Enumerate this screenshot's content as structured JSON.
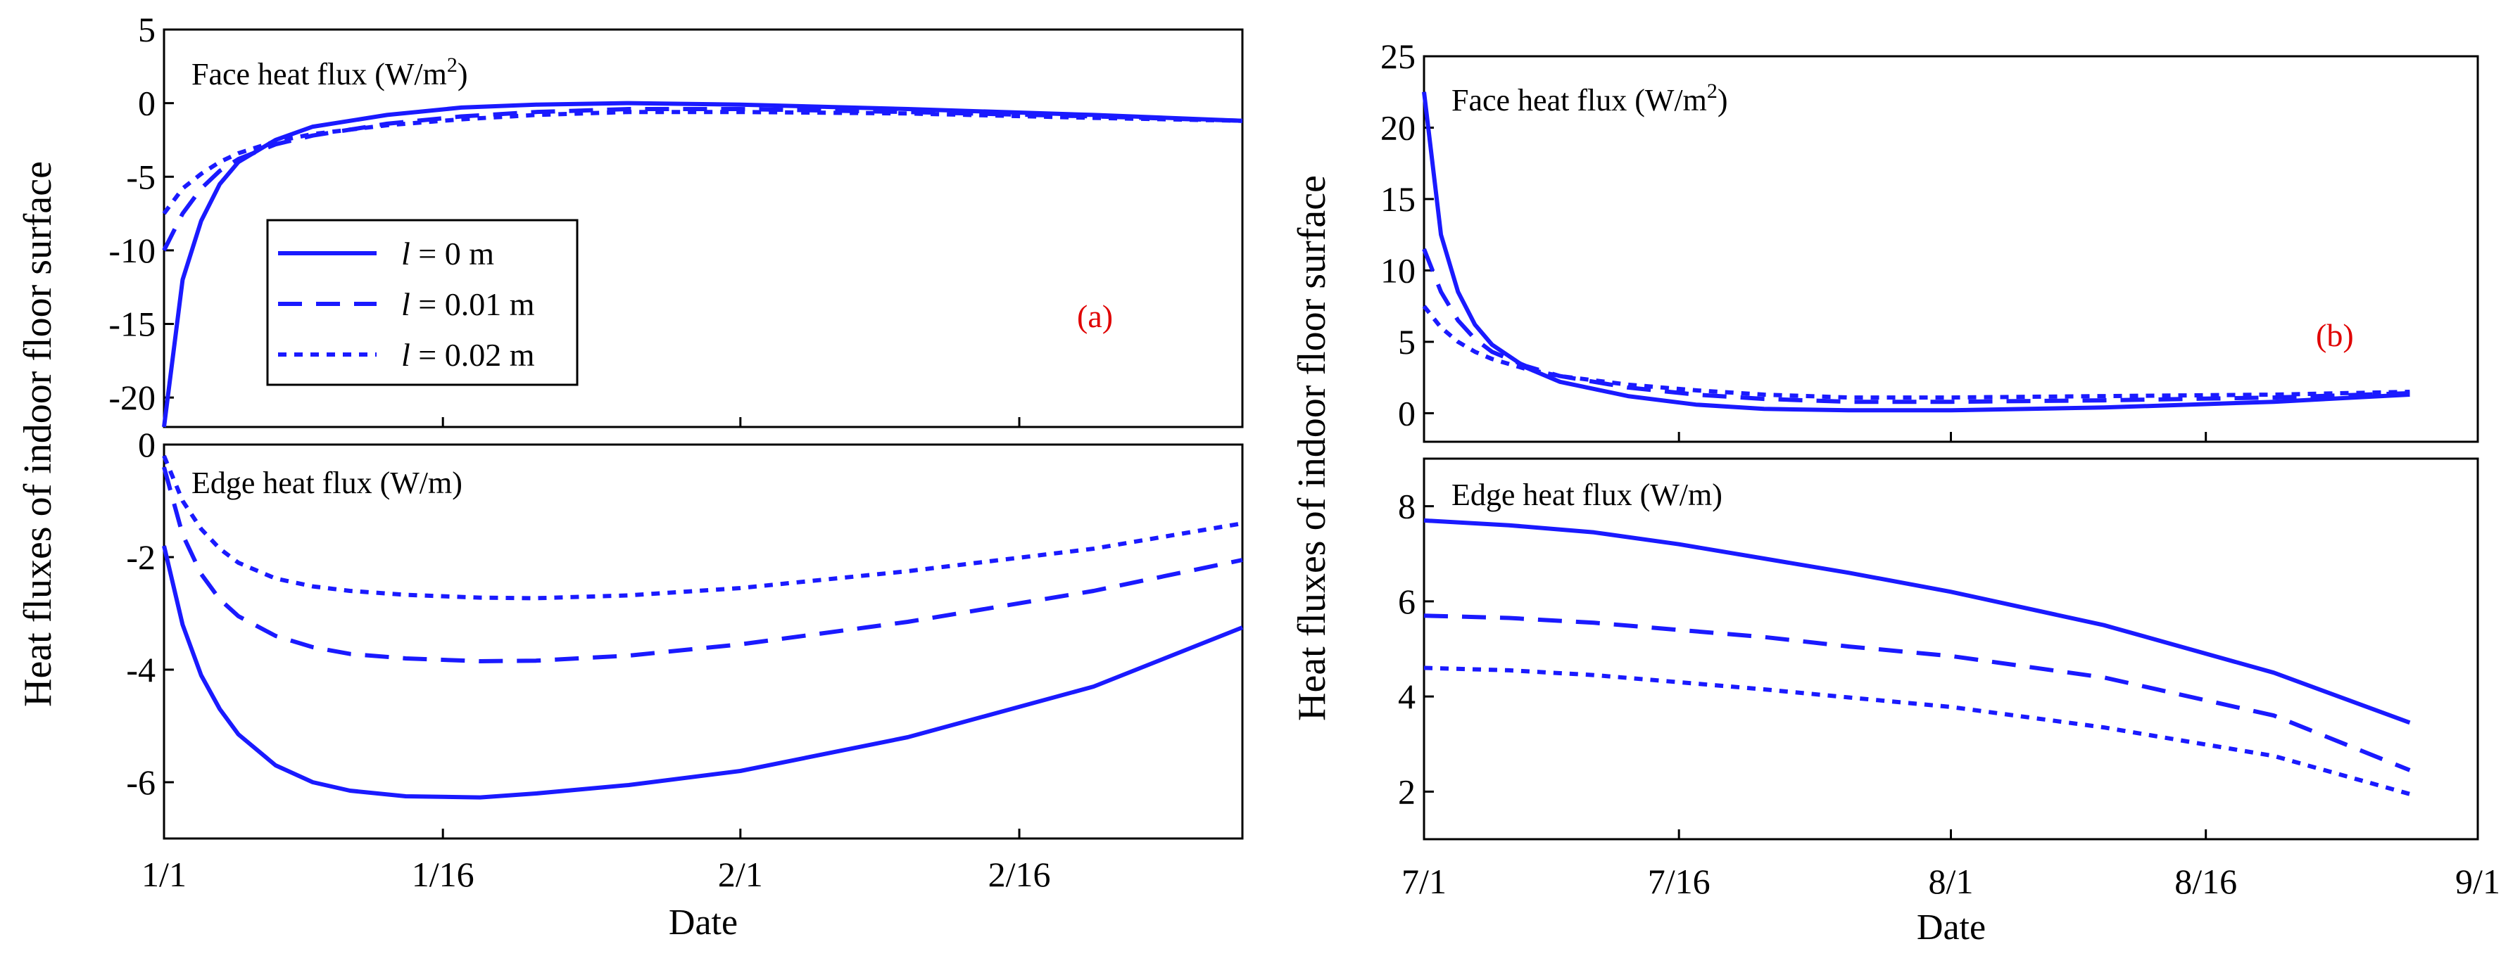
{
  "chart_data": [
    {
      "id": "a",
      "type": "line",
      "tag": "(a)",
      "ylabel": "Heat fluxes of indoor floor surface",
      "xlabel": "Date",
      "x_ticks": [
        "1/1",
        "1/16",
        "2/1",
        "2/16"
      ],
      "x_tick_days": [
        0,
        15,
        31,
        46
      ],
      "x_range": [
        0,
        58
      ],
      "legend": [
        {
          "var": "l",
          "text": " = 0 m",
          "dash": "solid"
        },
        {
          "var": "l",
          "text": " = 0.01 m",
          "dash": "dashed"
        },
        {
          "var": "l",
          "text": " = 0.02 m",
          "dash": "dotted"
        }
      ],
      "panels": [
        {
          "title": "Face heat flux (W/m",
          "title_sup": "2",
          "title_end": ")",
          "ylim": [
            -22,
            5
          ],
          "yticks": [
            5,
            0,
            -5,
            -10,
            -15,
            -20
          ],
          "ytick_labels": [
            "5",
            "0",
            "-5",
            "-10",
            "-15",
            "-20"
          ],
          "series": [
            {
              "name": "l = 0 m",
              "dash": "solid",
              "x": [
                0,
                1,
                2,
                3,
                4,
                6,
                8,
                12,
                16,
                20,
                25,
                31,
                40,
                50,
                58
              ],
              "y": [
                -22,
                -12,
                -8,
                -5.5,
                -4,
                -2.5,
                -1.6,
                -0.8,
                -0.3,
                -0.1,
                0,
                -0.1,
                -0.4,
                -0.8,
                -1.2
              ]
            },
            {
              "name": "l = 0.01 m",
              "dash": "dashed",
              "x": [
                0,
                1,
                2,
                3,
                4,
                6,
                8,
                12,
                16,
                20,
                25,
                31,
                40,
                50,
                58
              ],
              "y": [
                -10,
                -7.5,
                -5.8,
                -4.6,
                -3.8,
                -2.8,
                -2.2,
                -1.4,
                -0.9,
                -0.6,
                -0.4,
                -0.4,
                -0.6,
                -0.9,
                -1.2
              ]
            },
            {
              "name": "l = 0.02 m",
              "dash": "dotted",
              "x": [
                0,
                1,
                2,
                3,
                4,
                6,
                8,
                12,
                16,
                20,
                25,
                31,
                40,
                50,
                58
              ],
              "y": [
                -7.5,
                -5.8,
                -4.8,
                -4,
                -3.4,
                -2.6,
                -2.1,
                -1.5,
                -1.1,
                -0.8,
                -0.6,
                -0.6,
                -0.7,
                -1,
                -1.2
              ]
            }
          ]
        },
        {
          "title": "Edge heat flux (W/m)",
          "title_sup": "",
          "title_end": "",
          "ylim": [
            -7,
            0
          ],
          "yticks": [
            0,
            -2,
            -4,
            -6
          ],
          "ytick_labels": [
            "0",
            "-2",
            "-4",
            "-6"
          ],
          "series": [
            {
              "name": "l = 0 m",
              "dash": "solid",
              "x": [
                0,
                1,
                2,
                3,
                4,
                6,
                8,
                10,
                13,
                17,
                20,
                25,
                31,
                40,
                50,
                58
              ],
              "y": [
                -1.8,
                -3.2,
                -4.1,
                -4.7,
                -5.15,
                -5.7,
                -6,
                -6.15,
                -6.25,
                -6.27,
                -6.2,
                -6.05,
                -5.8,
                -5.2,
                -4.3,
                -3.25
              ]
            },
            {
              "name": "l = 0.01 m",
              "dash": "dashed",
              "x": [
                0,
                1,
                2,
                3,
                4,
                6,
                8,
                10,
                13,
                17,
                20,
                25,
                31,
                40,
                50,
                58
              ],
              "y": [
                -0.4,
                -1.6,
                -2.3,
                -2.75,
                -3.05,
                -3.4,
                -3.6,
                -3.72,
                -3.8,
                -3.85,
                -3.84,
                -3.75,
                -3.55,
                -3.15,
                -2.6,
                -2.05
              ]
            },
            {
              "name": "l = 0.02 m",
              "dash": "dotted",
              "x": [
                0,
                1,
                2,
                3,
                4,
                6,
                8,
                10,
                13,
                17,
                20,
                25,
                31,
                40,
                50,
                58
              ],
              "y": [
                -0.2,
                -1,
                -1.5,
                -1.85,
                -2.1,
                -2.38,
                -2.52,
                -2.6,
                -2.67,
                -2.72,
                -2.73,
                -2.68,
                -2.55,
                -2.25,
                -1.85,
                -1.4
              ]
            }
          ]
        }
      ]
    },
    {
      "id": "b",
      "type": "line",
      "tag": "(b)",
      "ylabel": "Heat fluxes of indoor floor surface",
      "xlabel": "Date",
      "x_ticks": [
        "7/1",
        "7/16",
        "8/1",
        "8/16",
        "9/1"
      ],
      "x_tick_days": [
        0,
        15,
        31,
        46,
        62
      ],
      "x_range": [
        0,
        62
      ],
      "panels": [
        {
          "title": "Face heat flux (W/m",
          "title_sup": "2",
          "title_end": ")",
          "ylim": [
            -2,
            25
          ],
          "yticks": [
            25,
            20,
            15,
            10,
            5,
            0
          ],
          "ytick_labels": [
            "25",
            "20",
            "15",
            "10",
            "5",
            "0"
          ],
          "series": [
            {
              "name": "l = 0 m",
              "dash": "solid",
              "x": [
                0,
                1,
                2,
                3,
                4,
                6,
                8,
                12,
                16,
                20,
                25,
                31,
                40,
                50,
                58
              ],
              "y": [
                22.5,
                12.5,
                8.5,
                6.2,
                4.8,
                3.2,
                2.2,
                1.2,
                0.6,
                0.3,
                0.2,
                0.2,
                0.4,
                0.8,
                1.3
              ]
            },
            {
              "name": "l = 0.01 m",
              "dash": "dashed",
              "x": [
                0,
                1,
                2,
                3,
                4,
                6,
                8,
                12,
                16,
                20,
                25,
                31,
                40,
                50,
                58
              ],
              "y": [
                11.5,
                8.5,
                6.5,
                5.2,
                4.3,
                3.3,
                2.6,
                1.8,
                1.3,
                1,
                0.8,
                0.8,
                0.9,
                1.1,
                1.4
              ]
            },
            {
              "name": "l = 0.02 m",
              "dash": "dotted",
              "x": [
                0,
                1,
                2,
                3,
                4,
                6,
                8,
                12,
                16,
                20,
                25,
                31,
                40,
                50,
                58
              ],
              "y": [
                7.5,
                6,
                5,
                4.3,
                3.8,
                3.1,
                2.6,
                2,
                1.6,
                1.3,
                1.1,
                1.1,
                1.2,
                1.3,
                1.5
              ]
            }
          ]
        },
        {
          "title": "Edge heat flux (W/m)",
          "title_sup": "",
          "title_end": "",
          "ylim": [
            1,
            9
          ],
          "yticks": [
            8,
            6,
            4,
            2
          ],
          "ytick_labels": [
            "8",
            "6",
            "4",
            "2"
          ],
          "series": [
            {
              "name": "l = 0 m",
              "dash": "solid",
              "x": [
                0,
                5,
                10,
                15,
                20,
                25,
                31,
                40,
                50,
                58
              ],
              "y": [
                7.7,
                7.6,
                7.45,
                7.2,
                6.9,
                6.6,
                6.2,
                5.5,
                4.5,
                3.45
              ]
            },
            {
              "name": "l = 0.01 m",
              "dash": "dashed",
              "x": [
                0,
                5,
                10,
                15,
                20,
                25,
                31,
                40,
                50,
                58
              ],
              "y": [
                5.7,
                5.65,
                5.55,
                5.4,
                5.25,
                5.05,
                4.85,
                4.4,
                3.6,
                2.45
              ]
            },
            {
              "name": "l = 0.02 m",
              "dash": "dotted",
              "x": [
                0,
                5,
                10,
                15,
                20,
                25,
                31,
                40,
                50,
                58
              ],
              "y": [
                4.6,
                4.55,
                4.45,
                4.3,
                4.15,
                3.98,
                3.78,
                3.35,
                2.75,
                1.95
              ]
            }
          ]
        }
      ]
    }
  ]
}
